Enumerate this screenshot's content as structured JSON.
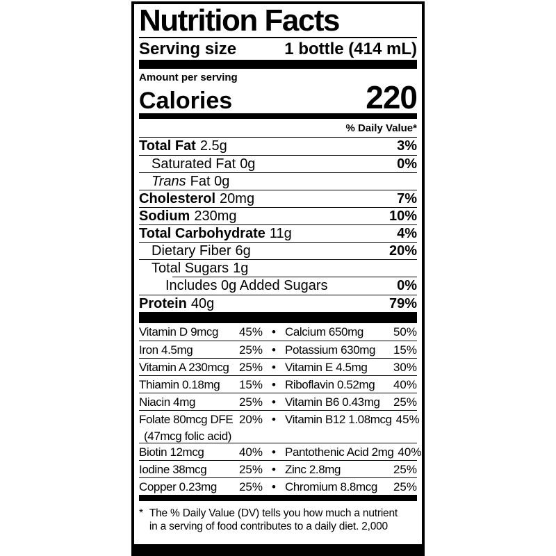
{
  "label": {
    "title": "Nutrition Facts",
    "serving_size_label": "Serving size",
    "serving_size_value": "1 bottle (414 mL)",
    "amount_per_serving": "Amount per serving",
    "calories_label": "Calories",
    "calories_value": "220",
    "daily_value_header": "% Daily Value*",
    "footnote_marker": "*",
    "footnote_line1": "The % Daily Value (DV) tells you how much a nutrient",
    "footnote_line2": "in a serving of food contributes to a daily diet. 2,000"
  },
  "vitamin_bullet": "•",
  "nutrients": [
    {
      "name": "Total Fat",
      "amount": "2.5g",
      "dv": "3%"
    },
    {
      "name": "Saturated Fat",
      "amount": "0g",
      "dv": "0%"
    },
    {
      "name": "Trans",
      "amount": "Fat 0g",
      "dv": ""
    },
    {
      "name": "Cholesterol",
      "amount": "20mg",
      "dv": "7%"
    },
    {
      "name": "Sodium",
      "amount": "230mg",
      "dv": "10%"
    },
    {
      "name": "Total Carbohydrate",
      "amount": "11g",
      "dv": "4%"
    },
    {
      "name": "Dietary Fiber",
      "amount": "6g",
      "dv": "20%"
    },
    {
      "name": "Total Sugars",
      "amount": "1g",
      "dv": ""
    },
    {
      "name": "Includes 0g Added Sugars",
      "amount": "",
      "dv": "0%"
    },
    {
      "name": "Protein",
      "amount": "40g",
      "dv": "79%"
    }
  ],
  "vitamins": [
    {
      "left": "Vitamin D 9mcg",
      "left_dv": "45%",
      "right": "Calcium 650mg",
      "right_dv": "50%"
    },
    {
      "left": "Iron 4.5mg",
      "left_dv": "25%",
      "right": "Potassium 630mg",
      "right_dv": "15%"
    },
    {
      "left": "Vitamin A 230mcg",
      "left_dv": "25%",
      "right": "Vitamin E 4.5mg",
      "right_dv": "30%"
    },
    {
      "left": "Thiamin 0.18mg",
      "left_dv": "15%",
      "right": "Riboflavin 0.52mg",
      "right_dv": "40%"
    },
    {
      "left": "Niacin 4mg",
      "left_dv": "25%",
      "right": "Vitamin B6 0.43mg",
      "right_dv": "25%"
    },
    {
      "left": "Folate 80mcg DFE",
      "left_note": "(47mcg folic acid)",
      "left_dv": "20%",
      "right": "Vitamin B12 1.08mcg",
      "right_dv": "45%"
    },
    {
      "left": "Biotin 12mcg",
      "left_dv": "40%",
      "right": "Pantothenic Acid 2mg",
      "right_dv": "40%"
    },
    {
      "left": "Iodine 38mcg",
      "left_dv": "25%",
      "right": "Zinc 2.8mg",
      "right_dv": "25%"
    },
    {
      "left": "Copper 0.23mg",
      "left_dv": "25%",
      "right": "Chromium 8.8mcg",
      "right_dv": "25%"
    }
  ],
  "colors": {
    "text": "#000000",
    "background": "#ffffff"
  }
}
